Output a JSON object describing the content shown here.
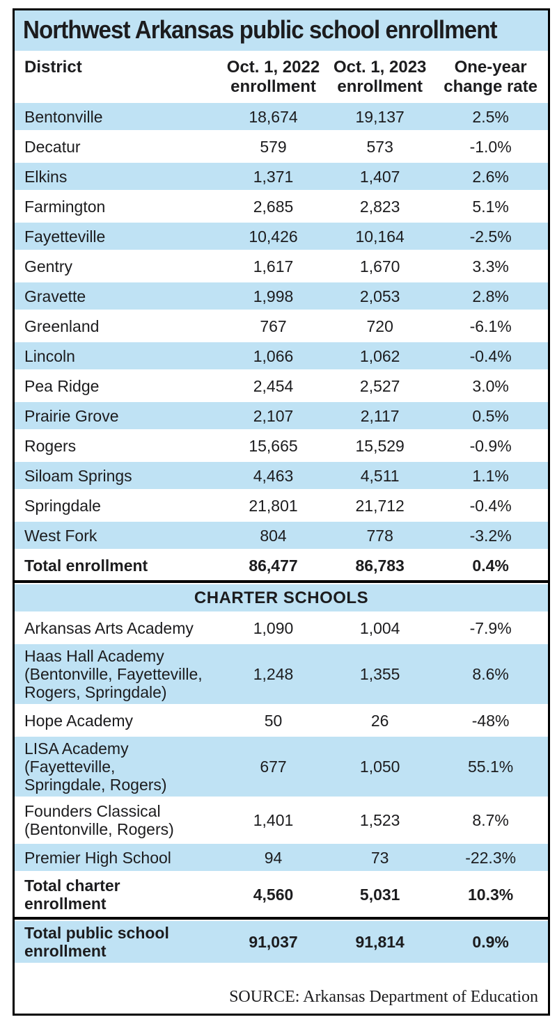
{
  "colors": {
    "row_shade": "#bfe2f4",
    "background": "#ffffff",
    "border": "#000000",
    "text": "#1c1c1e"
  },
  "chart_data": {
    "type": "table",
    "title": "Northwest Arkansas public school enrollment",
    "columns": [
      "District",
      "Oct. 1, 2022\nenrollment",
      "Oct. 1, 2023\nenrollment",
      "One-year\nchange rate"
    ],
    "source": "SOURCE: Arkansas Department of Education",
    "sections": [
      {
        "name": "districts",
        "heading": null,
        "rows": [
          {
            "district": "Bentonville",
            "enrollment_2022": "18,674",
            "enrollment_2023": "19,137",
            "change": "2.5%",
            "shaded": true,
            "bold": false
          },
          {
            "district": "Decatur",
            "enrollment_2022": "579",
            "enrollment_2023": "573",
            "change": "-1.0%",
            "shaded": false,
            "bold": false
          },
          {
            "district": "Elkins",
            "enrollment_2022": "1,371",
            "enrollment_2023": "1,407",
            "change": "2.6%",
            "shaded": true,
            "bold": false
          },
          {
            "district": "Farmington",
            "enrollment_2022": "2,685",
            "enrollment_2023": "2,823",
            "change": "5.1%",
            "shaded": false,
            "bold": false
          },
          {
            "district": "Fayetteville",
            "enrollment_2022": "10,426",
            "enrollment_2023": "10,164",
            "change": "-2.5%",
            "shaded": true,
            "bold": false
          },
          {
            "district": "Gentry",
            "enrollment_2022": "1,617",
            "enrollment_2023": "1,670",
            "change": "3.3%",
            "shaded": false,
            "bold": false
          },
          {
            "district": "Gravette",
            "enrollment_2022": "1,998",
            "enrollment_2023": "2,053",
            "change": "2.8%",
            "shaded": true,
            "bold": false
          },
          {
            "district": "Greenland",
            "enrollment_2022": "767",
            "enrollment_2023": "720",
            "change": "-6.1%",
            "shaded": false,
            "bold": false
          },
          {
            "district": "Lincoln",
            "enrollment_2022": "1,066",
            "enrollment_2023": "1,062",
            "change": "-0.4%",
            "shaded": true,
            "bold": false
          },
          {
            "district": "Pea Ridge",
            "enrollment_2022": "2,454",
            "enrollment_2023": "2,527",
            "change": "3.0%",
            "shaded": false,
            "bold": false
          },
          {
            "district": "Prairie Grove",
            "enrollment_2022": "2,107",
            "enrollment_2023": "2,117",
            "change": "0.5%",
            "shaded": true,
            "bold": false
          },
          {
            "district": "Rogers",
            "enrollment_2022": "15,665",
            "enrollment_2023": "15,529",
            "change": "-0.9%",
            "shaded": false,
            "bold": false
          },
          {
            "district": "Siloam Springs",
            "enrollment_2022": "4,463",
            "enrollment_2023": "4,511",
            "change": "1.1%",
            "shaded": true,
            "bold": false
          },
          {
            "district": "Springdale",
            "enrollment_2022": "21,801",
            "enrollment_2023": "21,712",
            "change": "-0.4%",
            "shaded": false,
            "bold": false
          },
          {
            "district": "West Fork",
            "enrollment_2022": "804",
            "enrollment_2023": "778",
            "change": "-3.2%",
            "shaded": true,
            "bold": false
          },
          {
            "district": "Total enrollment",
            "enrollment_2022": "86,477",
            "enrollment_2023": "86,783",
            "change": "0.4%",
            "shaded": false,
            "bold": true
          }
        ]
      },
      {
        "name": "charter-schools",
        "heading": "CHARTER SCHOOLS",
        "rows": [
          {
            "district": "Arkansas Arts Academy",
            "enrollment_2022": "1,090",
            "enrollment_2023": "1,004",
            "change": "-7.9%",
            "shaded": false,
            "bold": false
          },
          {
            "district": "Haas Hall Academy\n(Bentonville, Fayetteville,\nRogers, Springdale)",
            "enrollment_2022": "1,248",
            "enrollment_2023": "1,355",
            "change": "8.6%",
            "shaded": true,
            "bold": false
          },
          {
            "district": "Hope Academy",
            "enrollment_2022": "50",
            "enrollment_2023": "26",
            "change": "-48%",
            "shaded": false,
            "bold": false
          },
          {
            "district": "LISA Academy\n(Fayetteville,\nSpringdale, Rogers)",
            "enrollment_2022": "677",
            "enrollment_2023": "1,050",
            "change": "55.1%",
            "shaded": true,
            "bold": false
          },
          {
            "district": "Founders Classical\n(Bentonville, Rogers)",
            "enrollment_2022": "1,401",
            "enrollment_2023": "1,523",
            "change": "8.7%",
            "shaded": false,
            "bold": false
          },
          {
            "district": "Premier High School",
            "enrollment_2022": "94",
            "enrollment_2023": "73",
            "change": "-22.3%",
            "shaded": true,
            "bold": false
          },
          {
            "district": "Total charter\nenrollment",
            "enrollment_2022": "4,560",
            "enrollment_2023": "5,031",
            "change": "10.3%",
            "shaded": false,
            "bold": true
          }
        ]
      },
      {
        "name": "grand-total",
        "heading": null,
        "rows": [
          {
            "district": "Total public school\nenrollment",
            "enrollment_2022": "91,037",
            "enrollment_2023": "91,814",
            "change": "0.9%",
            "shaded": true,
            "bold": true
          }
        ]
      }
    ]
  }
}
